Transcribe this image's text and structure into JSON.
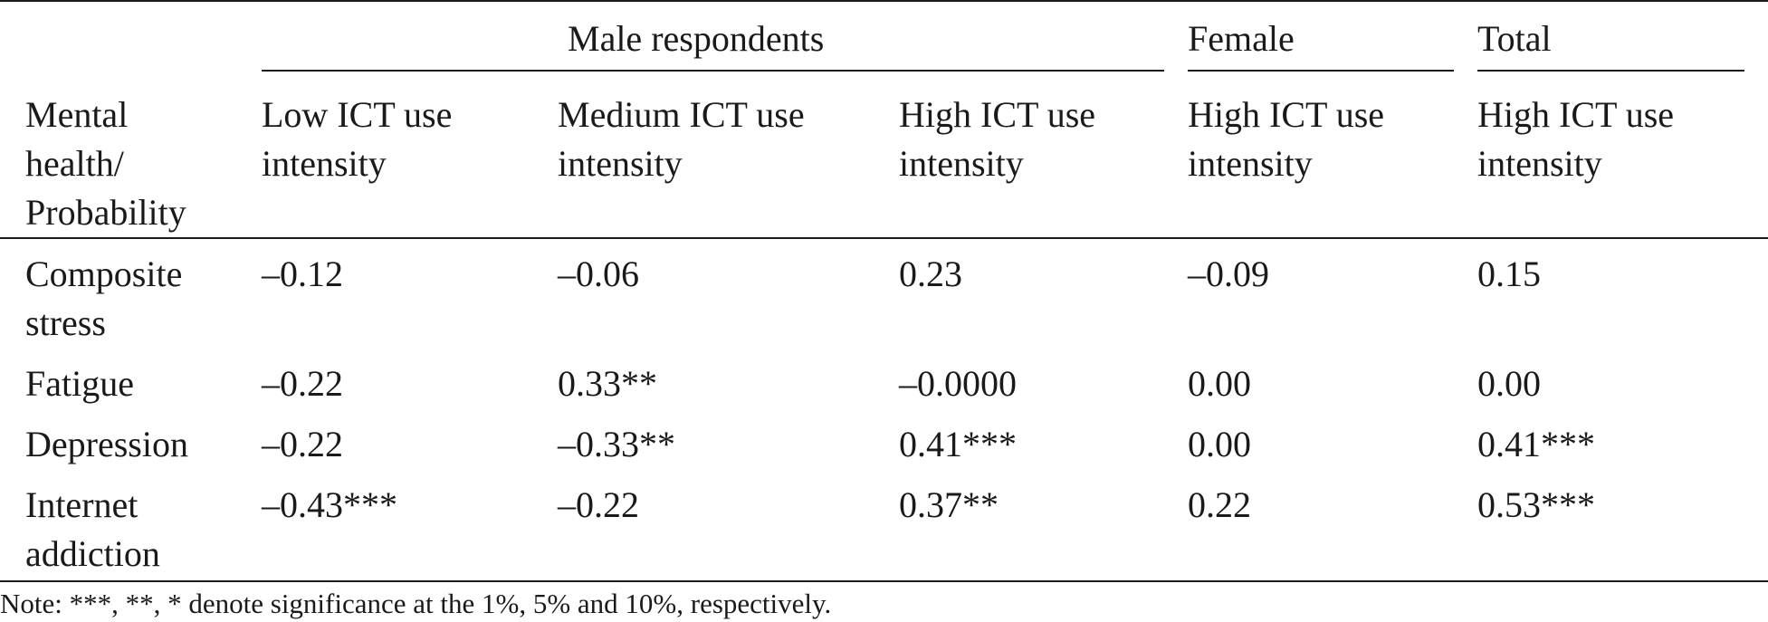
{
  "table": {
    "group_headers": {
      "male": "Male respondents",
      "female": "Female",
      "total": "Total"
    },
    "row_header_label": "Mental\nhealth/\nProbability",
    "column_headers": [
      "Low ICT use\nintensity",
      "Medium ICT use\nintensity",
      "High ICT use\nintensity",
      "High ICT use\nintensity",
      "High ICT use\nintensity"
    ],
    "rows": [
      {
        "label": "Composite\nstress",
        "values": [
          "–0.12",
          "–0.06",
          "0.23",
          "–0.09",
          "0.15"
        ]
      },
      {
        "label": "Fatigue",
        "values": [
          "–0.22",
          "0.33**",
          "–0.0000",
          "0.00",
          "0.00"
        ]
      },
      {
        "label": "Depression",
        "values": [
          "–0.22",
          "–0.33**",
          "0.41***",
          "0.00",
          "0.41***"
        ]
      },
      {
        "label": "Internet\naddiction",
        "values": [
          "–0.43***",
          "–0.22",
          "0.37**",
          "0.22",
          "0.53***"
        ]
      }
    ],
    "note": "Note: ***, **, * denote significance at the 1%, 5% and 10%, respectively."
  }
}
